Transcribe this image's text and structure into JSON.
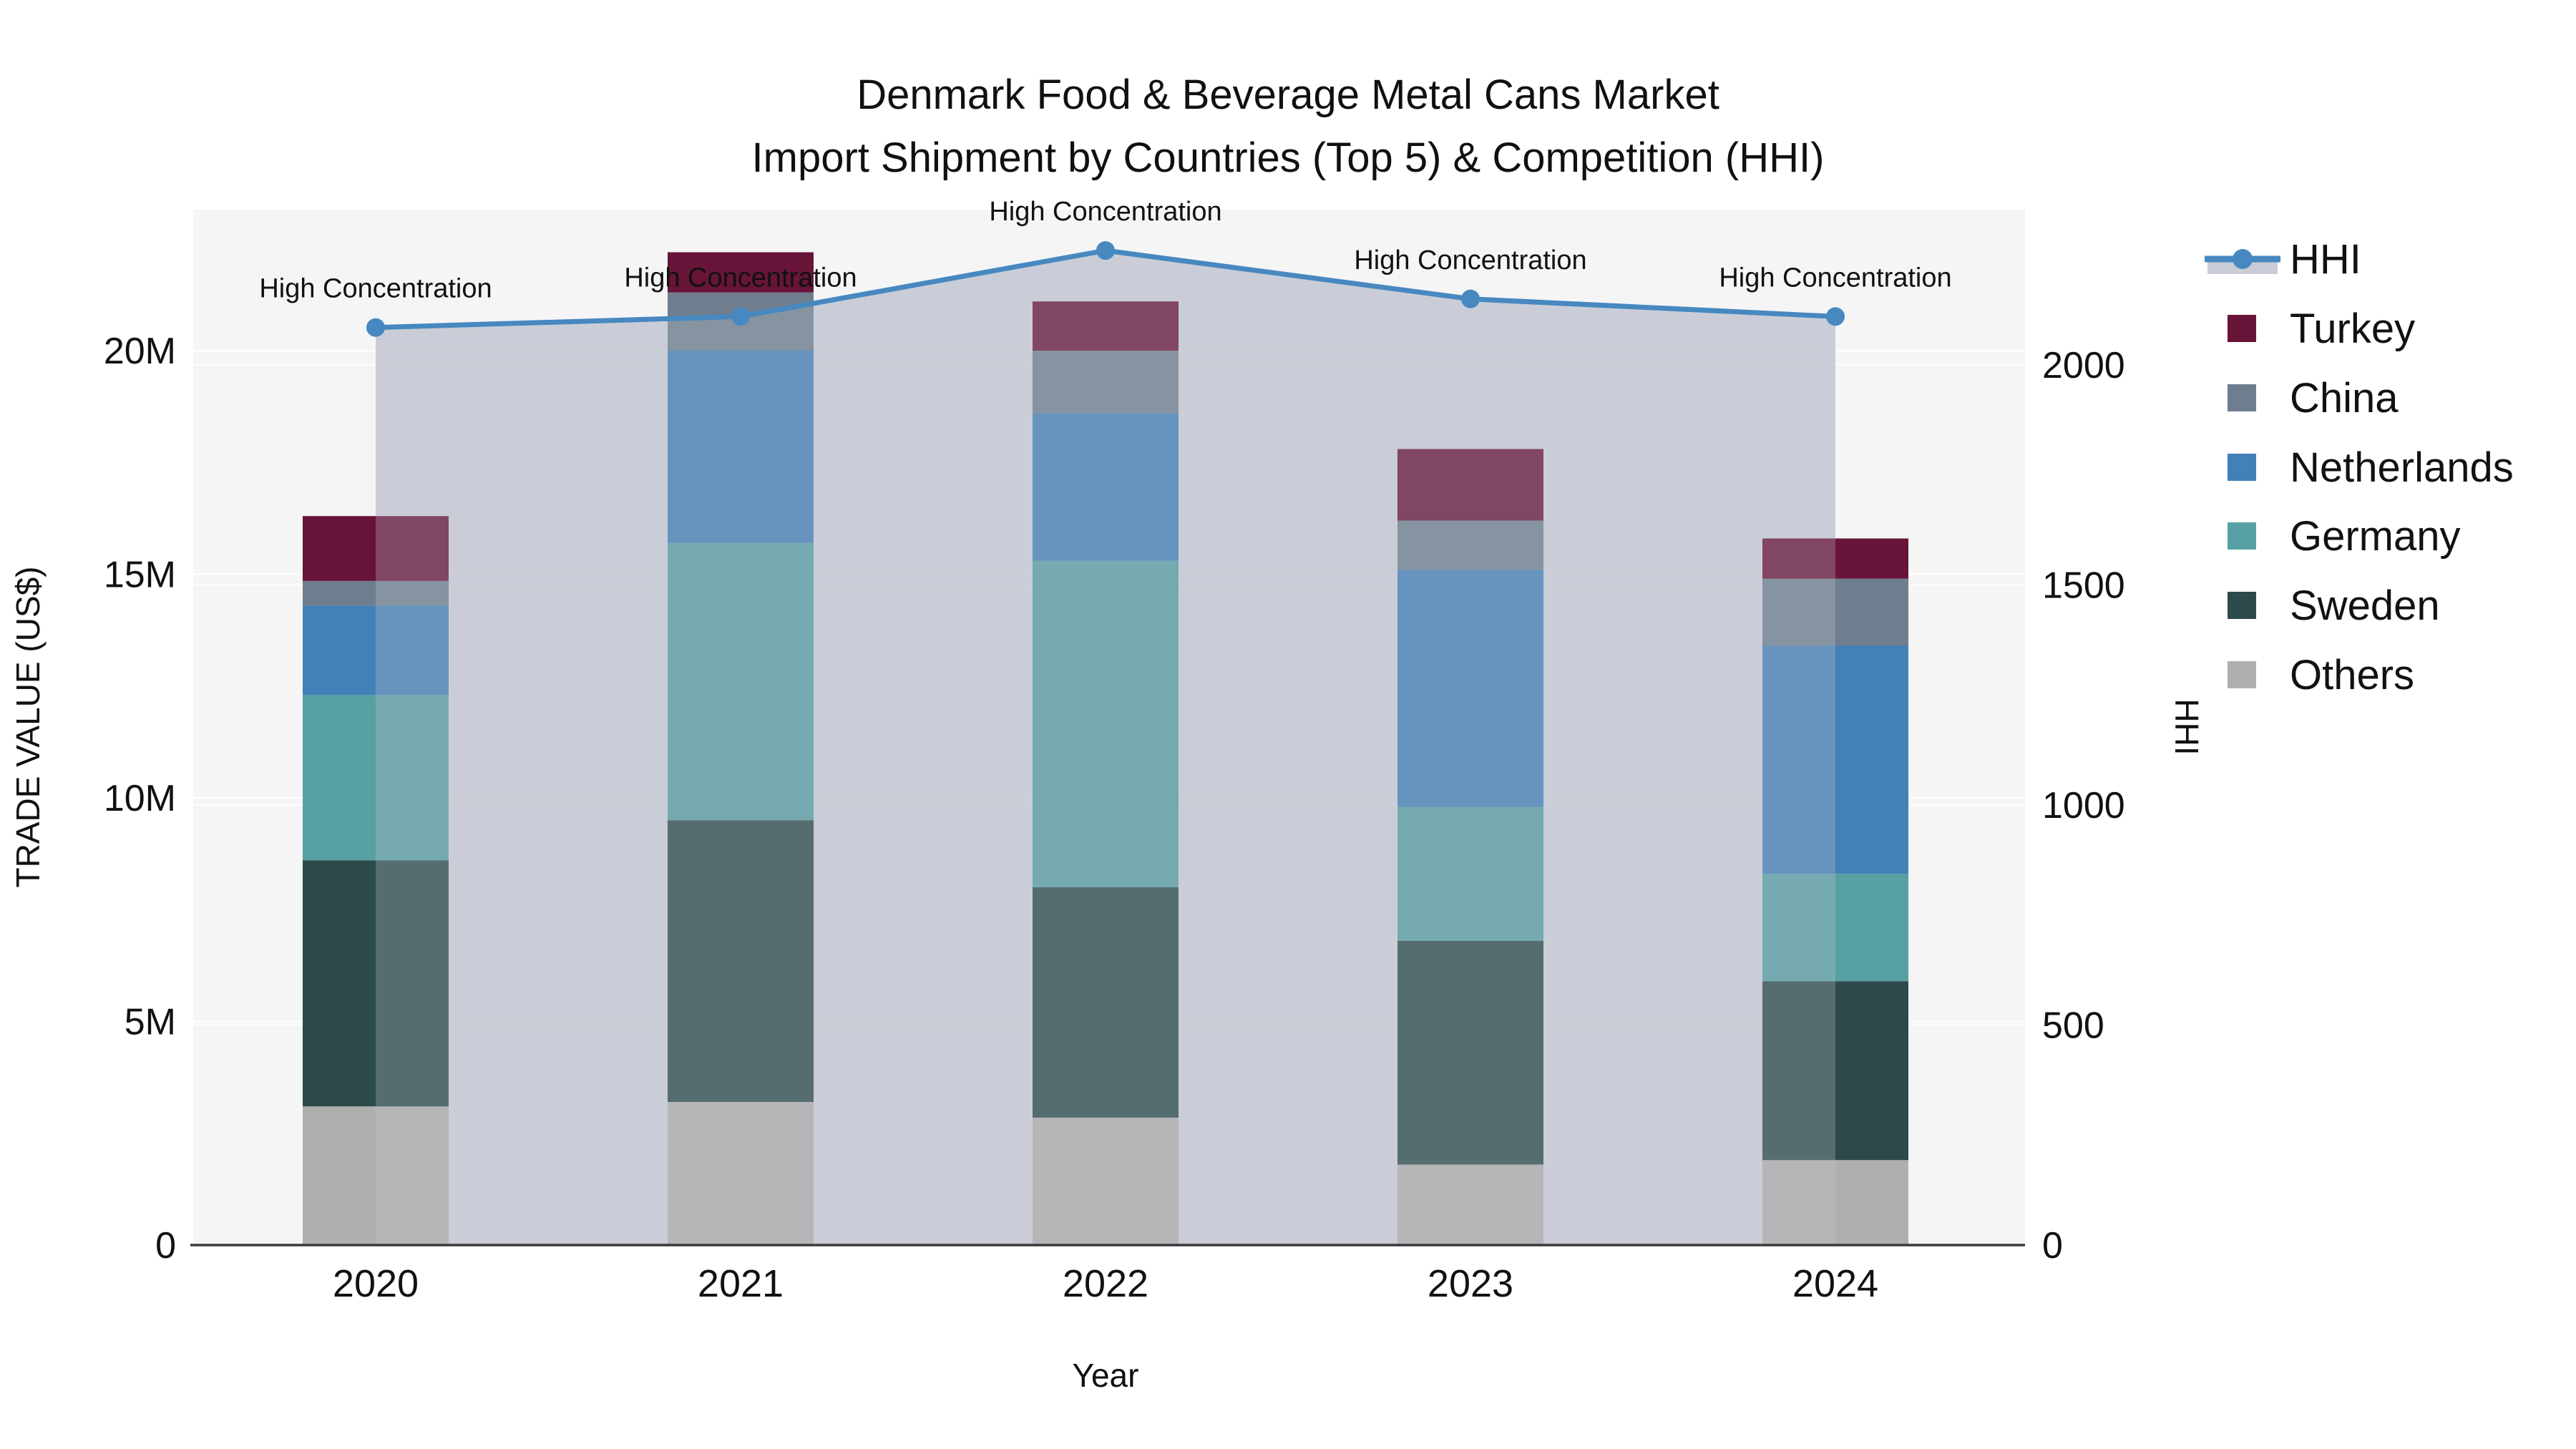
{
  "title": {
    "line1": "Denmark Food & Beverage Metal Cans Market",
    "line2": "Import Shipment by Countries (Top 5) & Competition (HHI)"
  },
  "axes": {
    "x": {
      "title": "Year",
      "categories": [
        "2020",
        "2021",
        "2022",
        "2023",
        "2024"
      ]
    },
    "y_left": {
      "title": "TRADE VALUE (US$)",
      "tick_labels": [
        "0",
        "5M",
        "10M",
        "15M",
        "20M"
      ],
      "tick_values_millions": [
        0,
        5,
        10,
        15,
        20
      ],
      "range_millions": [
        0,
        23.1
      ]
    },
    "y_right": {
      "title": "HHI",
      "tick_labels": [
        "0",
        "500",
        "1000",
        "1500",
        "2000"
      ],
      "tick_values": [
        0,
        500,
        1000,
        1500,
        2000
      ],
      "range": [
        0,
        2352
      ]
    }
  },
  "legend": [
    {
      "label": "HHI",
      "type": "line",
      "color": "#4788c0"
    },
    {
      "label": "Turkey",
      "type": "square",
      "color": "#671438"
    },
    {
      "label": "China",
      "type": "square",
      "color": "#6e7e8e"
    },
    {
      "label": "Netherlands",
      "type": "square",
      "color": "#4280b7"
    },
    {
      "label": "Germany",
      "type": "square",
      "color": "#57a0a3"
    },
    {
      "label": "Sweden",
      "type": "square",
      "color": "#2c4a49"
    },
    {
      "label": "Others",
      "type": "square",
      "color": "#b1afad"
    }
  ],
  "chart_data": {
    "type": [
      "bar",
      "line"
    ],
    "bar_mode": "stacked",
    "categories": [
      "2020",
      "2021",
      "2022",
      "2023",
      "2024"
    ],
    "value_unit": "USD millions",
    "stack_order_bottom_to_top": [
      "Others",
      "Sweden",
      "Germany",
      "Netherlands",
      "China",
      "Turkey"
    ],
    "series": [
      {
        "name": "Turkey",
        "color": "#671438",
        "values": [
          1.45,
          0.9,
          1.1,
          1.6,
          0.9
        ]
      },
      {
        "name": "China",
        "color": "#6e7e8e",
        "values": [
          0.55,
          1.3,
          1.4,
          1.1,
          1.5
        ]
      },
      {
        "name": "Netherlands",
        "color": "#4280b7",
        "values": [
          2.0,
          4.3,
          3.3,
          5.3,
          5.1
        ]
      },
      {
        "name": "Germany",
        "color": "#57a0a3",
        "values": [
          3.7,
          6.2,
          7.3,
          3.0,
          2.4
        ]
      },
      {
        "name": "Sweden",
        "color": "#2c4a49",
        "values": [
          5.5,
          6.3,
          5.15,
          5.0,
          4.0
        ]
      },
      {
        "name": "Others",
        "color": "#b1afad",
        "values": [
          3.1,
          3.2,
          2.85,
          1.8,
          1.9
        ]
      }
    ],
    "bar_totals_millions": [
      16.3,
      22.2,
      21.1,
      17.8,
      15.8
    ],
    "hhi": {
      "name": "HHI",
      "values": [
        2085,
        2110,
        2260,
        2150,
        2110
      ],
      "line_color": "#4788c0",
      "area_fill_color": "#c6cad4",
      "axis": "right"
    },
    "annotations": [
      "High Concentration",
      "High Concentration",
      "High Concentration",
      "High Concentration",
      "High Concentration"
    ],
    "plot_background": "#f5f5f6",
    "grid": true,
    "legend_position": "right"
  }
}
